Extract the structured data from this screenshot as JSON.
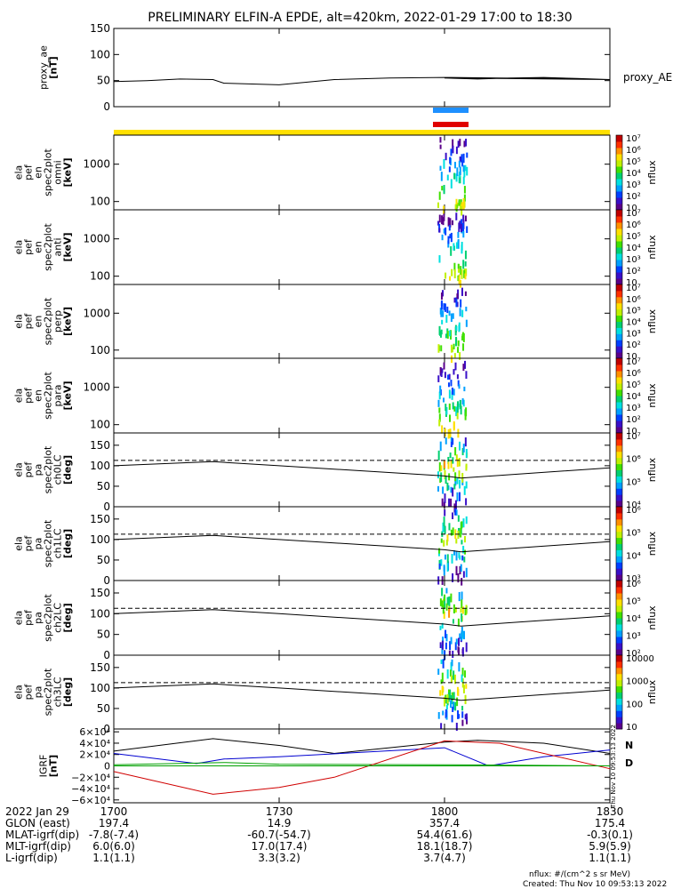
{
  "title": "PRELIMINARY ELFIN-A EPDE, alt=420km, 2022-01-29 17:00 to 18:30",
  "colors": {
    "line": "#000000",
    "yellow_bar": "#ffe000",
    "blue_bar": "#1e90ff",
    "red_bar": "#e00000",
    "n_color": "#0000c0",
    "d_color": "#e03000"
  },
  "chart_data": [
    {
      "type": "line",
      "name": "proxy_ae",
      "ylabel_lines": [
        "proxy_ae",
        "[nT]"
      ],
      "ylim": [
        0,
        150
      ],
      "yticks": [
        "150",
        "100",
        "50",
        "0"
      ],
      "yticks_vals": [
        150,
        100,
        50,
        0
      ],
      "legend_label": "proxy_AE",
      "x": [
        1700,
        1706,
        1712,
        1718,
        1720,
        1730,
        1740,
        1750,
        1760,
        1770,
        1780,
        1790,
        1800,
        1806,
        1812,
        1818,
        1824,
        1830
      ],
      "values": [
        48,
        50,
        53,
        52,
        45,
        42,
        52,
        55,
        56,
        55,
        54,
        52,
        55,
        53,
        55,
        56,
        54,
        52
      ]
    },
    {
      "type": "heatmap",
      "name": "omni",
      "ylabel_lines": [
        "ela",
        "pef",
        "en",
        "spec2plot",
        "omni",
        "[keV]"
      ],
      "yscale": "log",
      "ylim": [
        60,
        6000
      ],
      "yticks": [
        "1000",
        "100"
      ],
      "yticks_vals": [
        1000,
        100
      ],
      "colorbar": {
        "label": "nflux",
        "scale": "log",
        "range": [
          10,
          10000000
        ],
        "ticks": [
          "10",
          "10²",
          "10³",
          "10⁴",
          "10⁵",
          "10⁶",
          "10⁷"
        ]
      }
    },
    {
      "type": "heatmap",
      "name": "anti",
      "ylabel_lines": [
        "ela",
        "pef",
        "en",
        "spec2plot",
        "anti",
        "[keV]"
      ],
      "yscale": "log",
      "ylim": [
        60,
        6000
      ],
      "yticks": [
        "1000",
        "100"
      ],
      "yticks_vals": [
        1000,
        100
      ],
      "colorbar": {
        "label": "nflux",
        "scale": "log",
        "range": [
          10,
          10000000
        ],
        "ticks": [
          "10",
          "10²",
          "10³",
          "10⁴",
          "10⁵",
          "10⁶",
          "10⁷"
        ]
      }
    },
    {
      "type": "heatmap",
      "name": "perp",
      "ylabel_lines": [
        "ela",
        "pef",
        "en",
        "spec2plot",
        "perp",
        "[keV]"
      ],
      "yscale": "log",
      "ylim": [
        60,
        6000
      ],
      "yticks": [
        "1000",
        "100"
      ],
      "yticks_vals": [
        1000,
        100
      ],
      "colorbar": {
        "label": "nflux",
        "scale": "log",
        "range": [
          10,
          10000000
        ],
        "ticks": [
          "10",
          "10²",
          "10³",
          "10⁴",
          "10⁵",
          "10⁶",
          "10⁷"
        ]
      }
    },
    {
      "type": "heatmap",
      "name": "para",
      "ylabel_lines": [
        "ela",
        "pef",
        "en",
        "spec2plot",
        "para",
        "[keV]"
      ],
      "yscale": "log",
      "ylim": [
        60,
        6000
      ],
      "yticks": [
        "1000",
        "100"
      ],
      "yticks_vals": [
        1000,
        100
      ],
      "colorbar": {
        "label": "nflux",
        "scale": "log",
        "range": [
          10,
          10000000
        ],
        "ticks": [
          "10",
          "10²",
          "10³",
          "10⁴",
          "10⁵",
          "10⁶",
          "10⁷"
        ]
      }
    },
    {
      "type": "heatmap",
      "name": "ch0LC",
      "ylabel_lines": [
        "ela",
        "pef",
        "pa",
        "spec2plot",
        "ch0LC",
        "[deg]"
      ],
      "yscale": "linear",
      "ylim": [
        0,
        180
      ],
      "yticks": [
        "150",
        "100",
        "50",
        "0"
      ],
      "yticks_vals": [
        150,
        100,
        50,
        0
      ],
      "colorbar": {
        "label": "nflux",
        "scale": "log",
        "range": [
          1000,
          10000000
        ],
        "ticks": [
          "10⁴",
          "10⁵",
          "10⁶",
          "10⁷"
        ]
      }
    },
    {
      "type": "heatmap",
      "name": "ch1LC",
      "ylabel_lines": [
        "ela",
        "pef",
        "pa",
        "spec2plot",
        "ch1LC",
        "[deg]"
      ],
      "yscale": "linear",
      "ylim": [
        0,
        180
      ],
      "yticks": [
        "150",
        "100",
        "50",
        "0"
      ],
      "yticks_vals": [
        150,
        100,
        50,
        0
      ],
      "colorbar": {
        "label": "nflux",
        "scale": "log",
        "range": [
          1000,
          3000000
        ],
        "ticks": [
          "10³",
          "10⁴",
          "10⁵",
          "10⁶"
        ]
      }
    },
    {
      "type": "heatmap",
      "name": "ch2LC",
      "ylabel_lines": [
        "ela",
        "pef",
        "pa",
        "spec2plot",
        "ch2LC",
        "[deg]"
      ],
      "yscale": "linear",
      "ylim": [
        0,
        180
      ],
      "yticks": [
        "150",
        "100",
        "50",
        "0"
      ],
      "yticks_vals": [
        150,
        100,
        50,
        0
      ],
      "colorbar": {
        "label": "nflux",
        "scale": "log",
        "range": [
          100,
          3000000
        ],
        "ticks": [
          "10²",
          "10³",
          "10⁴",
          "10⁵",
          "10⁶"
        ]
      }
    },
    {
      "type": "heatmap",
      "name": "ch3LC",
      "ylabel_lines": [
        "ela",
        "pef",
        "pa",
        "spec2plot",
        "ch3LC",
        "[deg]"
      ],
      "yscale": "linear",
      "ylim": [
        0,
        180
      ],
      "yticks": [
        "150",
        "100",
        "50",
        "0"
      ],
      "yticks_vals": [
        150,
        100,
        50,
        0
      ],
      "colorbar": {
        "label": "nflux",
        "scale": "log",
        "range": [
          10,
          30000
        ],
        "ticks": [
          "10",
          "100",
          "1000",
          "10000"
        ]
      }
    },
    {
      "type": "line",
      "name": "IGRF",
      "ylabel_lines": [
        "IGRF",
        "[nT]"
      ],
      "ylim": [
        -65000,
        65000
      ],
      "yticks": [
        "6×10⁴",
        "4×10⁴",
        "2×10⁴",
        "0",
        "−2×10⁴",
        "−4×10⁴",
        "−6×10⁴"
      ],
      "yticks_vals": [
        60000,
        40000,
        20000,
        0,
        -20000,
        -40000,
        -60000
      ],
      "legend": [
        "N",
        "D"
      ]
    }
  ],
  "x_axis": {
    "xlim": [
      1700,
      1830
    ],
    "tick_vals": [
      1700,
      1730,
      1800,
      1830
    ],
    "rows": [
      {
        "label": "2022 Jan 29",
        "values": [
          "1700",
          "1730",
          "1800",
          "1830"
        ]
      },
      {
        "label": "GLON (east)",
        "values": [
          "197.4",
          "14.9",
          "357.4",
          "175.4"
        ]
      },
      {
        "label": "MLAT-igrf(dip)",
        "values": [
          "-7.8(-7.4)",
          "-60.7(-54.7)",
          "54.4(61.6)",
          "-0.3(0.1)"
        ]
      },
      {
        "label": "MLT-igrf(dip)",
        "values": [
          "6.0(6.0)",
          "17.0(17.4)",
          "18.1(18.7)",
          "5.9(5.9)"
        ]
      },
      {
        "label": "L-igrf(dip)",
        "values": [
          "1.1(1.1)",
          "3.3(3.2)",
          "3.7(4.7)",
          "1.1(1.1)"
        ]
      }
    ]
  },
  "footer": {
    "units": "nflux: #/(cm^2 s sr MeV)",
    "created": "Created: Thu Nov 10 09:53:13 2022",
    "side_stamp": "Thu Nov 10 09:53:13 2022"
  }
}
